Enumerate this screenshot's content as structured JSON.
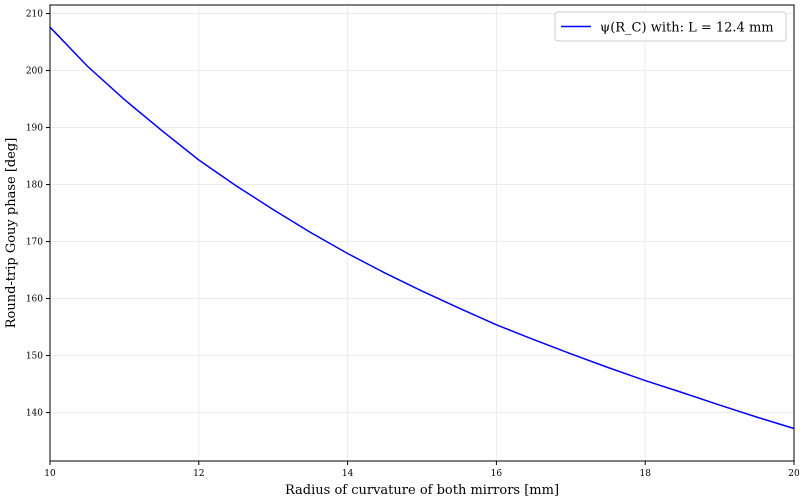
{
  "chart_data": {
    "type": "line",
    "title": "",
    "xlabel": "Radius of curvature of both mirrors [mm]",
    "ylabel": "Round-trip Gouy phase [deg]",
    "xlim": [
      10,
      20
    ],
    "ylim": [
      131.5,
      211.5
    ],
    "xticks": [
      10,
      12,
      14,
      16,
      18,
      20
    ],
    "yticks": [
      140,
      150,
      160,
      170,
      180,
      190,
      200,
      210
    ],
    "xtick_labels": [
      "10",
      "12",
      "14",
      "16",
      "18",
      "20"
    ],
    "ytick_labels": [
      "140",
      "150",
      "160",
      "170",
      "180",
      "190",
      "200",
      "210"
    ],
    "grid": true,
    "legend_position": "top-right",
    "series": [
      {
        "name": "ψ(R_C) with: L = 12.4 mm",
        "color": "#0000ff",
        "x": [
          10,
          10.5,
          11,
          11.5,
          12,
          12.5,
          13,
          13.5,
          14,
          14.5,
          15,
          15.5,
          16,
          16.5,
          17,
          17.5,
          18,
          18.5,
          19,
          19.5,
          20
        ],
        "y": [
          207.6,
          200.8,
          194.9,
          189.5,
          184.3,
          179.8,
          175.6,
          171.6,
          167.9,
          164.5,
          161.3,
          158.3,
          155.4,
          152.8,
          150.3,
          147.9,
          145.6,
          143.5,
          141.3,
          139.2,
          137.2
        ]
      }
    ]
  }
}
